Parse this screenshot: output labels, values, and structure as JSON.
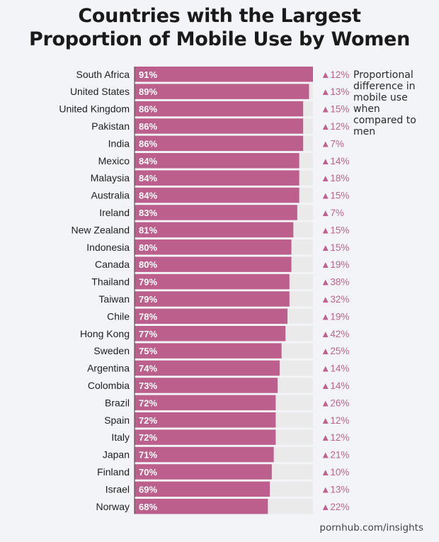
{
  "title": {
    "line1": "Countries with the Largest",
    "line2": "Proportion of Mobile Use by Women"
  },
  "legend_note": "Proportional difference in mobile use when compared to men",
  "credit": "pornhub.com/insights",
  "colors": {
    "bar": "#bd5f8c",
    "track": "#eaeaea",
    "difference_text": "#c0628f",
    "label_text": "#1e1e1e",
    "bar_text": "#ffffff"
  },
  "chart_data": {
    "type": "bar",
    "orientation": "horizontal",
    "unit": "%",
    "xlim": [
      0,
      91
    ],
    "categories": [
      "South Africa",
      "United States",
      "United Kingdom",
      "Pakistan",
      "India",
      "Mexico",
      "Malaysia",
      "Australia",
      "Ireland",
      "New Zealand",
      "Indonesia",
      "Canada",
      "Thailand",
      "Taiwan",
      "Chile",
      "Hong Kong",
      "Sweden",
      "Argentina",
      "Colombia",
      "Brazil",
      "Spain",
      "Italy",
      "Japan",
      "Finland",
      "Israel",
      "Norway"
    ],
    "values": [
      91,
      89,
      86,
      86,
      86,
      84,
      84,
      84,
      83,
      81,
      80,
      80,
      79,
      79,
      78,
      77,
      75,
      74,
      73,
      72,
      72,
      72,
      71,
      70,
      69,
      68
    ],
    "value_labels": [
      "91%",
      "89%",
      "86%",
      "86%",
      "86%",
      "84%",
      "84%",
      "84%",
      "83%",
      "81%",
      "80%",
      "80%",
      "79%",
      "79%",
      "78%",
      "77%",
      "75%",
      "74%",
      "73%",
      "72%",
      "72%",
      "72%",
      "71%",
      "70%",
      "69%",
      "68%"
    ],
    "differences": [
      12,
      13,
      15,
      12,
      7,
      14,
      18,
      15,
      7,
      15,
      15,
      19,
      38,
      32,
      19,
      42,
      25,
      14,
      14,
      26,
      12,
      12,
      21,
      10,
      13,
      22
    ],
    "difference_labels": [
      "▲12%",
      "▲13%",
      "▲15%",
      "▲12%",
      "▲7%",
      "▲14%",
      "▲18%",
      "▲15%",
      "▲7%",
      "▲15%",
      "▲15%",
      "▲19%",
      "▲38%",
      "▲32%",
      "▲19%",
      "▲42%",
      "▲25%",
      "▲14%",
      "▲14%",
      "▲26%",
      "▲12%",
      "▲12%",
      "▲21%",
      "▲10%",
      "▲13%",
      "▲22%"
    ]
  }
}
